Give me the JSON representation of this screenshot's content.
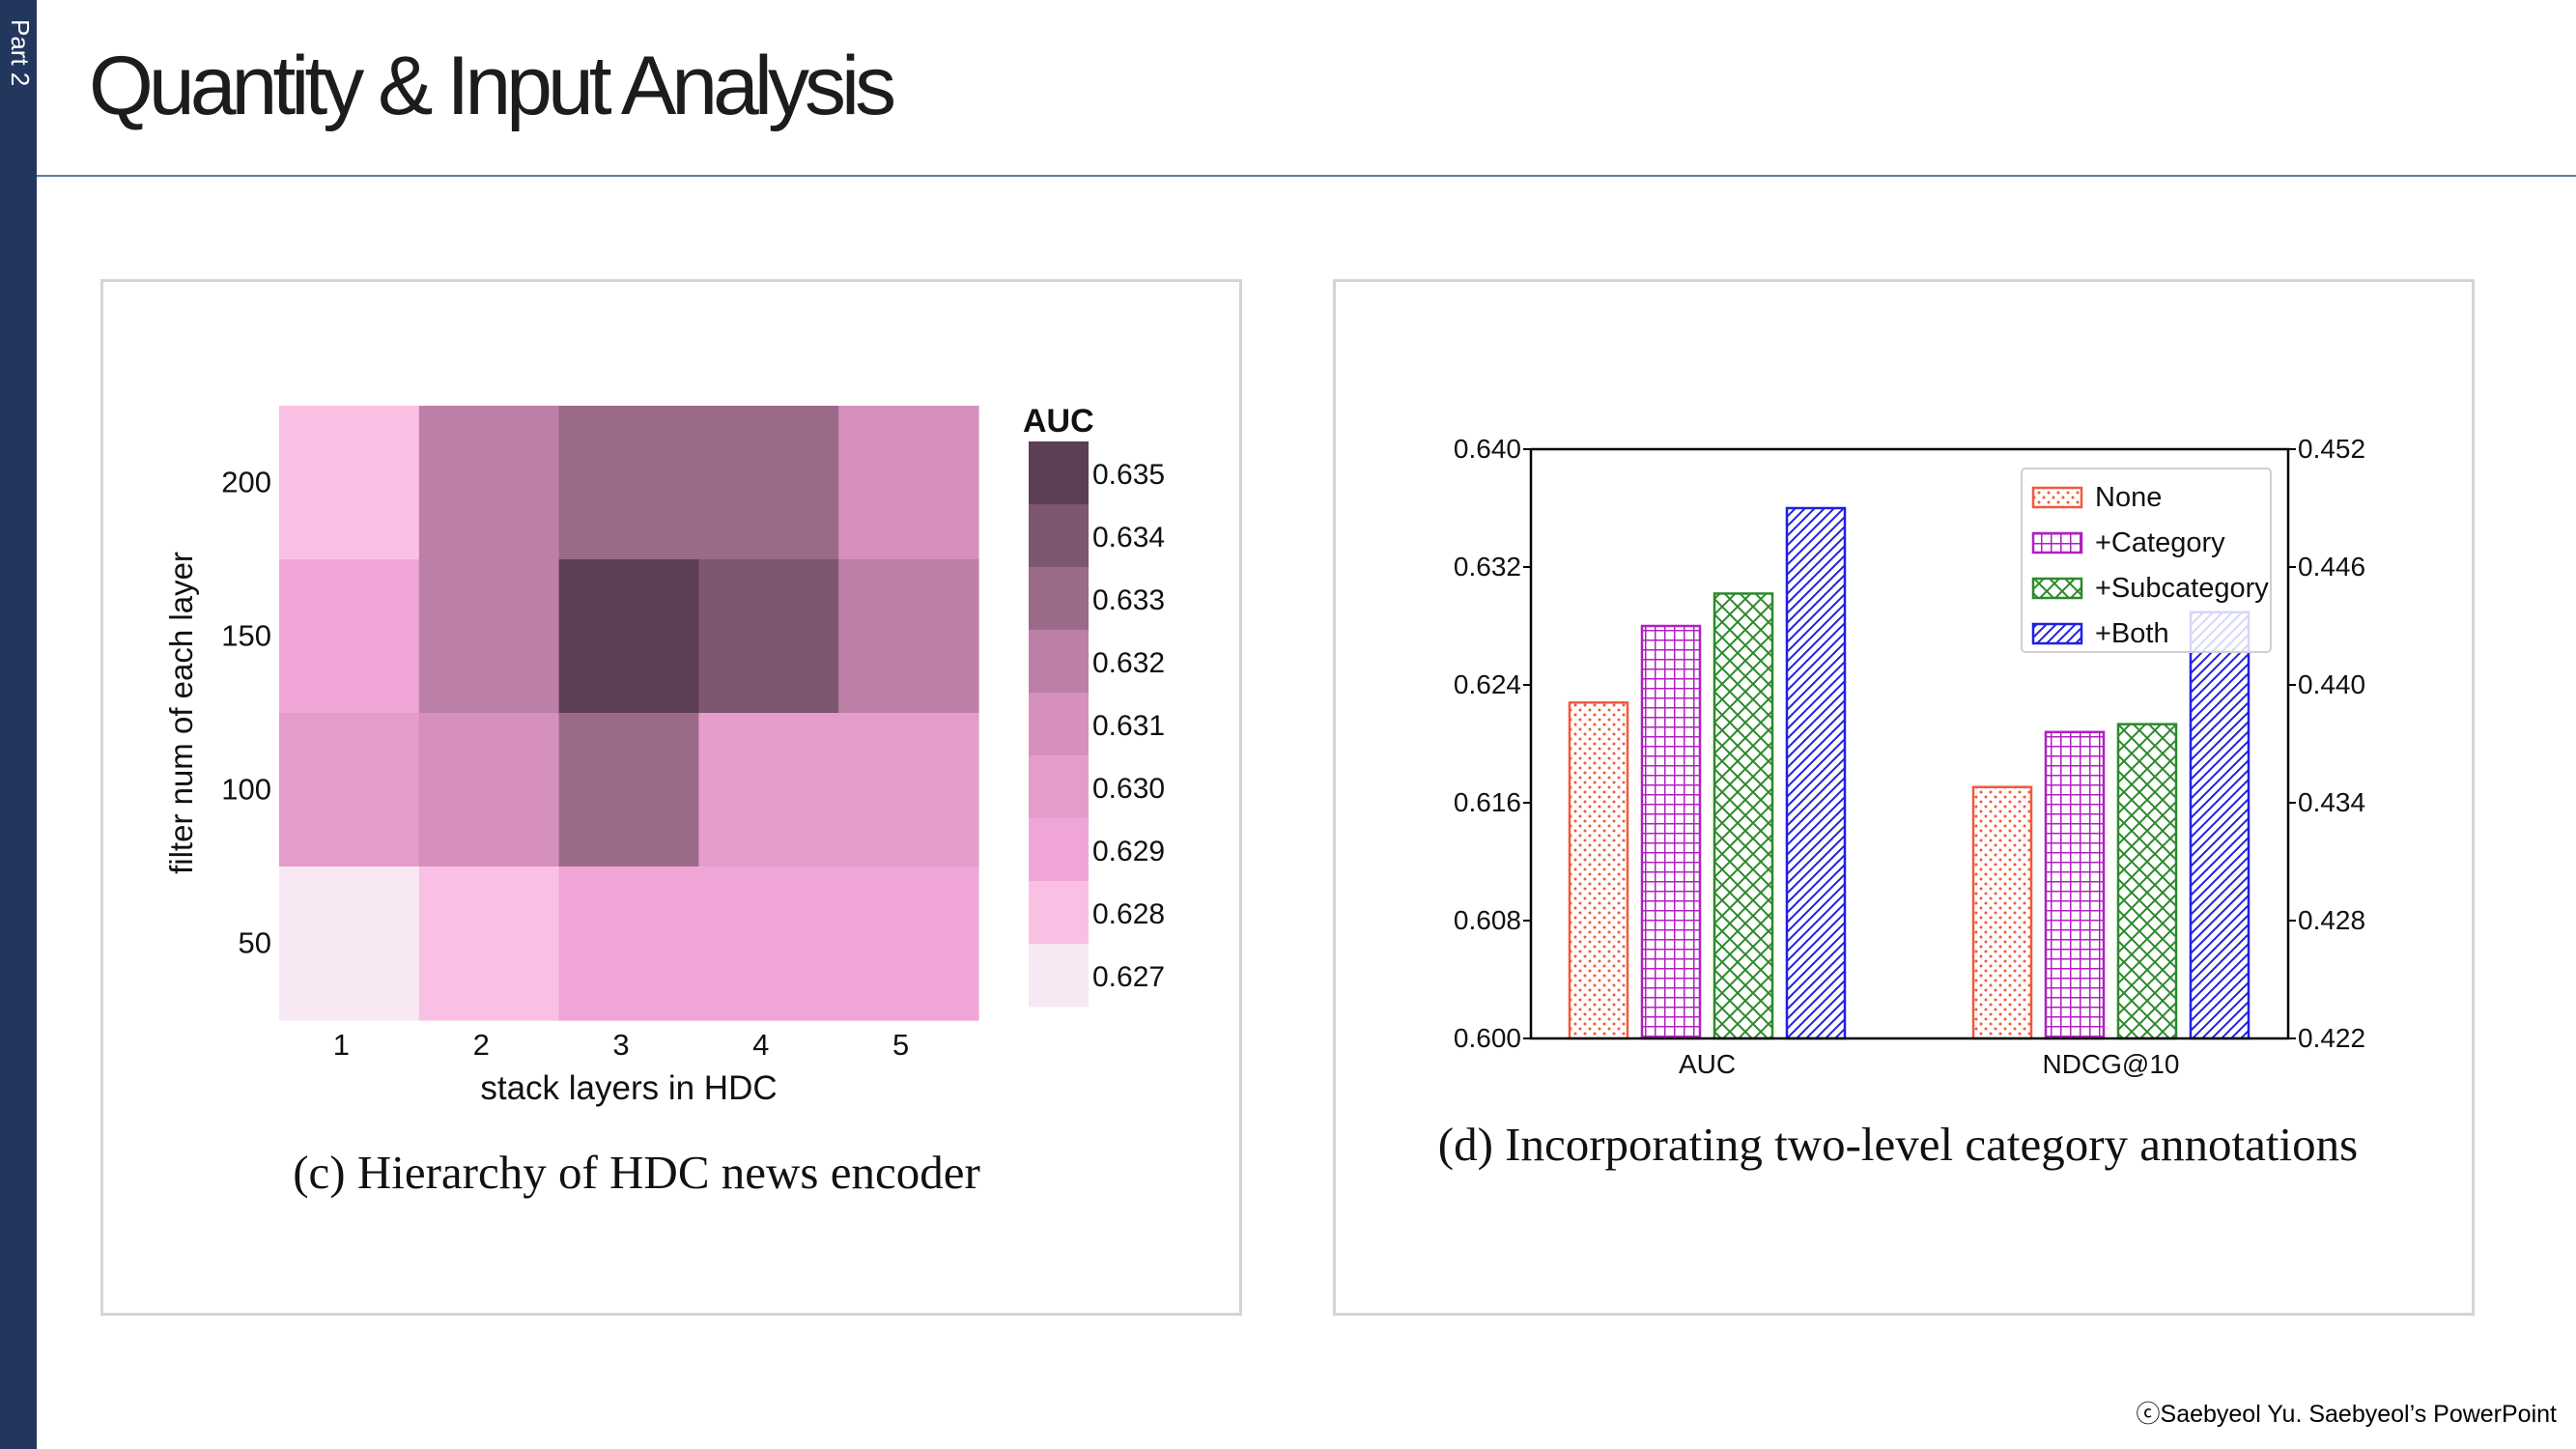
{
  "slide": {
    "part_label": "Part 2",
    "title": "Quantity & Input Analysis",
    "credit": "ⓒSaebyeol Yu. Saebyeol’s PowerPoint"
  },
  "chart_data": [
    {
      "type": "heatmap",
      "title": "(c) Hierarchy of HDC news encoder",
      "xlabel": "stack layers in HDC",
      "ylabel": "filter num of each layer",
      "x_ticks": [
        "1",
        "2",
        "3",
        "4",
        "5"
      ],
      "y_ticks": [
        "200",
        "150",
        "100",
        "50"
      ],
      "values": [
        [
          0.6285,
          0.6325,
          0.633,
          0.6335,
          0.631
        ],
        [
          0.629,
          0.632,
          0.6354,
          0.6342,
          0.632
        ],
        [
          0.6305,
          0.631,
          0.6335,
          0.63,
          0.63
        ],
        [
          0.627,
          0.6285,
          0.6295,
          0.6289,
          0.629
        ]
      ],
      "colorbar": {
        "label": "AUC",
        "ticks": [
          "0.635",
          "0.634",
          "0.633",
          "0.632",
          "0.631",
          "0.630",
          "0.629",
          "0.628",
          "0.627"
        ],
        "levels": [
          0.635,
          0.634,
          0.633,
          0.632,
          0.631,
          0.63,
          0.629,
          0.628,
          0.627
        ],
        "colors": [
          "#5c3e55",
          "#7d566f",
          "#9b6a88",
          "#bc80a6",
          "#d690bd",
          "#e49dca",
          "#efa6d6",
          "#fac0e4",
          "#f8e8f3"
        ]
      }
    },
    {
      "type": "bar",
      "title": "(d) Incorporating two-level category annotations",
      "categories": [
        "AUC",
        "NDCG@10"
      ],
      "ylim": [
        0.6,
        0.64
      ],
      "yticks": [
        "0.600",
        "0.608",
        "0.616",
        "0.624",
        "0.632",
        "0.640"
      ],
      "y2lim": [
        0.422,
        0.452
      ],
      "y2ticks": [
        "0.422",
        "0.428",
        "0.434",
        "0.440",
        "0.446",
        "0.452"
      ],
      "series": [
        {
          "name": "None",
          "values": [
            0.6228,
            0.4348
          ],
          "color": "#f05a3c",
          "pattern": "dots"
        },
        {
          "name": "+Category",
          "values": [
            0.628,
            0.4376
          ],
          "color": "#b020c0",
          "pattern": "grid"
        },
        {
          "name": "+Subcategory",
          "values": [
            0.6302,
            0.438
          ],
          "color": "#2a8a2a",
          "pattern": "cross"
        },
        {
          "name": "+Both",
          "values": [
            0.636,
            0.4437
          ],
          "color": "#2020e0",
          "pattern": "diag"
        }
      ],
      "legend_position": "top-right"
    }
  ]
}
